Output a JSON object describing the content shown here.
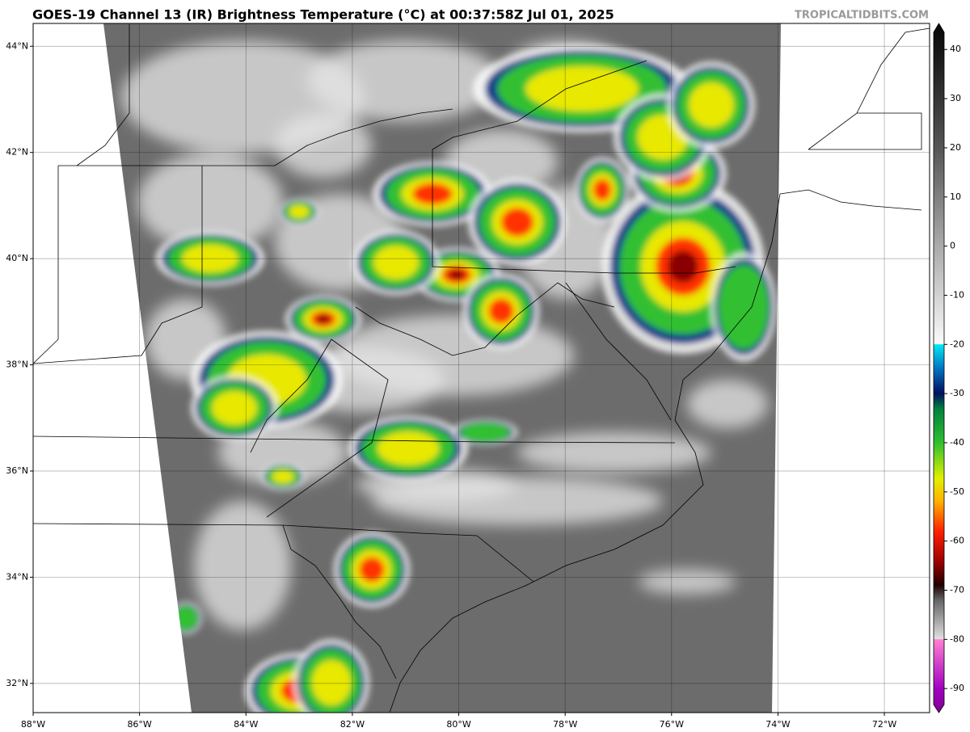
{
  "title": "GOES-19 Channel 13 (IR) Brightness Temperature (°C) at 00:37:58Z Jul 01, 2025",
  "credit": "TROPICALTIDBITS.COM",
  "map": {
    "lon_lim": [
      -88,
      -71.15
    ],
    "lat_lim": [
      31.45,
      44.43
    ],
    "lat_ticks": [
      {
        "value": 44,
        "label": "44°N"
      },
      {
        "value": 42,
        "label": "42°N"
      },
      {
        "value": 40,
        "label": "40°N"
      },
      {
        "value": 38,
        "label": "38°N"
      },
      {
        "value": 36,
        "label": "36°N"
      },
      {
        "value": 34,
        "label": "34°N"
      },
      {
        "value": 32,
        "label": "32°N"
      }
    ],
    "lon_ticks": [
      {
        "value": -88,
        "label": "88°W"
      },
      {
        "value": -86,
        "label": "86°W"
      },
      {
        "value": -84,
        "label": "84°W"
      },
      {
        "value": -82,
        "label": "82°W"
      },
      {
        "value": -80,
        "label": "80°W"
      },
      {
        "value": -78,
        "label": "78°W"
      },
      {
        "value": -76,
        "label": "76°W"
      },
      {
        "value": -74,
        "label": "74°W"
      },
      {
        "value": -72,
        "label": "72°W"
      }
    ]
  },
  "colorbar": {
    "lim": [
      -94.9,
      45.3
    ],
    "ticks": [
      40,
      30,
      20,
      10,
      0,
      -10,
      -20,
      -30,
      -40,
      -50,
      -60,
      -70,
      -80,
      -90
    ]
  }
}
